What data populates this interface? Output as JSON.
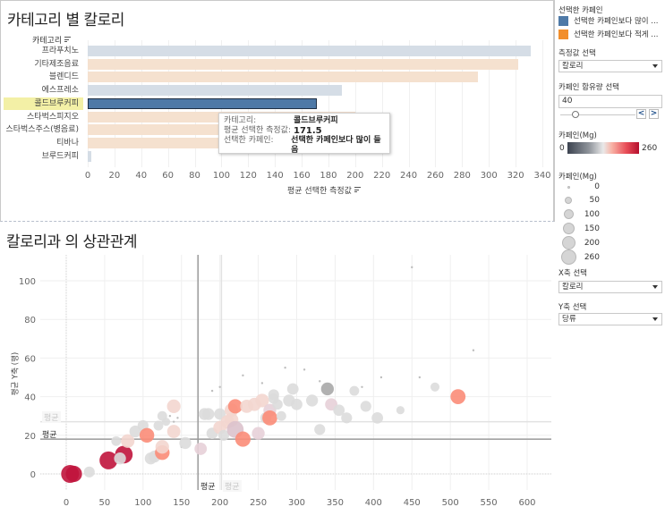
{
  "top_chart": {
    "title": "카테고리 별 칼로리",
    "category_header": "카테고리",
    "x_axis_label": "평균 선택한 측정값",
    "tooltip": {
      "category_key": "카테고리:",
      "category_value": "콜드브루커피",
      "measure_key": "평균 선택한 측정값:",
      "measure_value": "171.5",
      "caffeine_key": "선택한 카페인:",
      "caffeine_value": "선택한 카페인보다 많이 들음"
    }
  },
  "bottom_chart": {
    "title": "칼로리과 의 상관관계",
    "y_axis_label": "평균 Y축 (행)",
    "ref_labels": {
      "mean_h_dark": "평균",
      "mean_h_light": "평균",
      "mean_v_dark": "평균",
      "mean_v_light": "평균"
    }
  },
  "sidebar": {
    "legend_title": "선택한 카페인",
    "legend_items": [
      {
        "label": "선택한 카페인보다 많이 ...",
        "color": "#4e79a7"
      },
      {
        "label": "선택한 카페인보다 적게 ...",
        "color": "#f28e2b"
      }
    ],
    "measure_select_label": "측정값 선택",
    "measure_select_value": "칼로리",
    "caffeine_amount_label": "카페인 함유량 선택",
    "caffeine_amount_value": "40",
    "step_prev": "<",
    "step_next": ">",
    "color_legend_title": "카페인(Mg)",
    "color_min": "0",
    "color_max": "260",
    "size_legend_title": "카페인(Mg)",
    "size_items": [
      "0",
      "50",
      "100",
      "150",
      "200",
      "260"
    ],
    "x_select_label": "X축 선택",
    "x_select_value": "칼로리",
    "y_select_label": "Y축 선택",
    "y_select_value": "당류"
  },
  "chart_data": [
    {
      "type": "bar",
      "title": "카테고리 별 칼로리",
      "xlabel": "평균 선택한 측정값",
      "ylabel": "카테고리",
      "xlim": [
        0,
        340
      ],
      "x_ticks": [
        "0",
        "20",
        "40",
        "60",
        "80",
        "100",
        "120",
        "140",
        "160",
        "180",
        "200",
        "220",
        "240",
        "260",
        "280",
        "300",
        "320",
        "340"
      ],
      "categories": [
        "프라푸치노",
        "기타제조음료",
        "블렌디드",
        "에스프레소",
        "콜드브루커피",
        "스타벅스피지오",
        "스타벅스주스(병음료)",
        "티바나",
        "브루드커피"
      ],
      "values": [
        331,
        322,
        292,
        190,
        171.5,
        200,
        200,
        200,
        3
      ],
      "groups": [
        "more",
        "less",
        "less",
        "more",
        "more",
        "less",
        "less",
        "less",
        "more"
      ],
      "highlighted": "콜드브루커피",
      "colors": {
        "more": "#d5dde6",
        "less": "#f5e1cf",
        "selected": "#4e79a7"
      }
    },
    {
      "type": "scatter",
      "title": "칼로리과 의 상관관계",
      "xlabel": "칼로리",
      "ylabel": "평균 Y축 (행)",
      "xlim": [
        -25,
        630
      ],
      "ylim": [
        -9,
        113
      ],
      "x_ticks": [
        "0",
        "50",
        "100",
        "150",
        "200",
        "250",
        "300",
        "350",
        "400",
        "450",
        "500",
        "550",
        "600"
      ],
      "y_ticks": [
        "0",
        "20",
        "40",
        "60",
        "80",
        "100"
      ],
      "ref_lines": {
        "x_mean": 171.5,
        "x_mean_other": 202,
        "y_mean": 18,
        "y_mean_other": 27
      },
      "points": [
        [
          5,
          0,
          260
        ],
        [
          55,
          7,
          260
        ],
        [
          75,
          10,
          250
        ],
        [
          10,
          0,
          200
        ],
        [
          30,
          1,
          60
        ],
        [
          80,
          17,
          120
        ],
        [
          65,
          17,
          40
        ],
        [
          70,
          8,
          80
        ],
        [
          90,
          22,
          80
        ],
        [
          100,
          25,
          60
        ],
        [
          105,
          20,
          150
        ],
        [
          110,
          8,
          80
        ],
        [
          115,
          9,
          80
        ],
        [
          120,
          25,
          40
        ],
        [
          125,
          11,
          150
        ],
        [
          125,
          14,
          120
        ],
        [
          125,
          30,
          40
        ],
        [
          130,
          27,
          20
        ],
        [
          140,
          35,
          120
        ],
        [
          140,
          22,
          110
        ],
        [
          145,
          29,
          10
        ],
        [
          150,
          14,
          10
        ],
        [
          155,
          16,
          80
        ],
        [
          135,
          30,
          10
        ],
        [
          175,
          13,
          90
        ],
        [
          180,
          31,
          80
        ],
        [
          185,
          31,
          80
        ],
        [
          190,
          21,
          70
        ],
        [
          200,
          31,
          70
        ],
        [
          200,
          24,
          110
        ],
        [
          205,
          20,
          60
        ],
        [
          210,
          27,
          120
        ],
        [
          215,
          33,
          120
        ],
        [
          215,
          28,
          130
        ],
        [
          220,
          35,
          140
        ],
        [
          220,
          23,
          220
        ],
        [
          230,
          18,
          170
        ],
        [
          235,
          35,
          110
        ],
        [
          245,
          36,
          110
        ],
        [
          250,
          21,
          100
        ],
        [
          255,
          38,
          120
        ],
        [
          260,
          29,
          70
        ],
        [
          265,
          33,
          100
        ],
        [
          265,
          29,
          160
        ],
        [
          270,
          41,
          60
        ],
        [
          270,
          39,
          50
        ],
        [
          275,
          36,
          50
        ],
        [
          280,
          30,
          40
        ],
        [
          290,
          38,
          80
        ],
        [
          295,
          44,
          70
        ],
        [
          300,
          36,
          70
        ],
        [
          320,
          38,
          80
        ],
        [
          330,
          23,
          60
        ],
        [
          340,
          44,
          100
        ],
        [
          345,
          36,
          90
        ],
        [
          355,
          33,
          70
        ],
        [
          365,
          29,
          60
        ],
        [
          375,
          43,
          40
        ],
        [
          390,
          35,
          60
        ],
        [
          405,
          29,
          70
        ],
        [
          480,
          45,
          30
        ],
        [
          510,
          40,
          160
        ],
        [
          435,
          33,
          20
        ],
        [
          450,
          107,
          10
        ],
        [
          285,
          55,
          5
        ],
        [
          310,
          54,
          5
        ],
        [
          330,
          48,
          5
        ],
        [
          530,
          64,
          5
        ],
        [
          460,
          50,
          5
        ],
        [
          410,
          50,
          5
        ],
        [
          385,
          45,
          5
        ],
        [
          255,
          47,
          5
        ],
        [
          230,
          51,
          5
        ],
        [
          200,
          45,
          5
        ],
        [
          190,
          43,
          5
        ],
        [
          140,
          27,
          5
        ]
      ],
      "point_format": "[x_calories, y_sugar, caffeine_mg]"
    }
  ]
}
